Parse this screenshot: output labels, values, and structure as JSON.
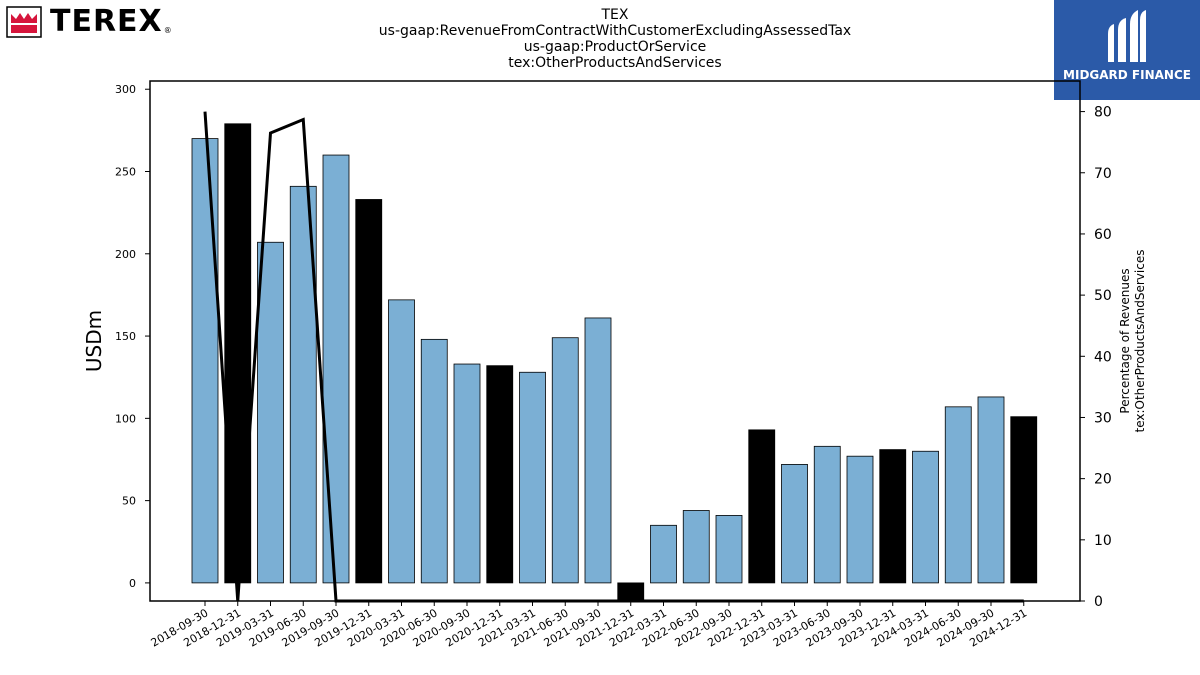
{
  "header": {
    "title_lines": [
      "TEX",
      "us-gaap:RevenueFromContractWithCustomerExcludingAssessedTax",
      "us-gaap:ProductOrService",
      "tex:OtherProductsAndServices"
    ],
    "left_logo_text": "TEREX",
    "left_logo_mark": "®",
    "right_logo_text": "MIDGARD FINANCE"
  },
  "colors": {
    "bar_default": "#7bafd4",
    "bar_highlight": "#000000",
    "line": "#000000",
    "terex_red": "#d6153c",
    "midgard_blue": "#2b5aa8"
  },
  "chart_data": {
    "type": "bar",
    "ylabel": "USDm",
    "y2label_lines": [
      "Percentage of Revenues",
      "tex:OtherProductsAndServices"
    ],
    "ylim": [
      -11,
      305
    ],
    "y2lim": [
      0,
      85
    ],
    "yticks": [
      0,
      50,
      100,
      150,
      200,
      250,
      300
    ],
    "y2ticks": [
      0,
      10,
      20,
      30,
      40,
      50,
      60,
      70,
      80
    ],
    "categories": [
      "2018-09-30",
      "2018-12-31",
      "2019-03-31",
      "2019-06-30",
      "2019-09-30",
      "2019-12-31",
      "2020-03-31",
      "2020-06-30",
      "2020-09-30",
      "2020-12-31",
      "2021-03-31",
      "2021-06-30",
      "2021-09-30",
      "2021-12-31",
      "2022-03-31",
      "2022-06-30",
      "2022-09-30",
      "2022-12-31",
      "2023-03-31",
      "2023-06-30",
      "2023-09-30",
      "2023-12-31",
      "2024-03-31",
      "2024-06-30",
      "2024-09-30",
      "2024-12-31"
    ],
    "series": [
      {
        "values": [
          270,
          279,
          207,
          241,
          260,
          233,
          172,
          148,
          133,
          132,
          128,
          149,
          161,
          -11,
          35,
          44,
          41,
          93,
          72,
          83,
          77,
          81,
          80,
          107,
          113,
          101
        ],
        "highlight": [
          false,
          true,
          false,
          false,
          false,
          true,
          false,
          false,
          false,
          true,
          false,
          false,
          false,
          true,
          false,
          false,
          false,
          true,
          false,
          false,
          false,
          true,
          false,
          false,
          false,
          true
        ]
      },
      {
        "axis": "right",
        "type": "line",
        "values": [
          80,
          0,
          76.5,
          78.7,
          0,
          0,
          0,
          0,
          0,
          0,
          0,
          0,
          0,
          0,
          0,
          0,
          0,
          0,
          0,
          0,
          0,
          0,
          0,
          0,
          0,
          0
        ]
      }
    ],
    "grid": false,
    "legend": "none"
  }
}
